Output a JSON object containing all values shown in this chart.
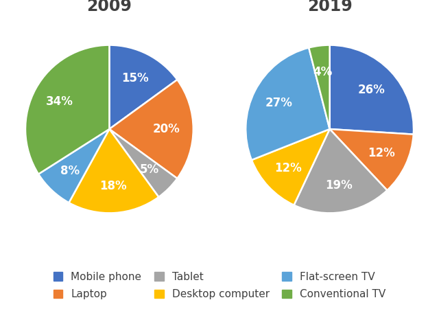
{
  "title_2009": "2009",
  "title_2019": "2019",
  "categories": [
    "Mobile phone",
    "Laptop",
    "Tablet",
    "Desktop computer",
    "Flat-screen TV",
    "Conventional TV"
  ],
  "colors": [
    "#4472C4",
    "#ED7D31",
    "#A5A5A5",
    "#FFC000",
    "#5BA3D9",
    "#70AD47"
  ],
  "values_2009": [
    15,
    20,
    5,
    18,
    8,
    34
  ],
  "values_2019": [
    26,
    12,
    19,
    12,
    27,
    4
  ],
  "labels_2009": [
    "15%",
    "20%",
    "5%",
    "18%",
    "8%",
    "34%"
  ],
  "labels_2019": [
    "26%",
    "12%",
    "19%",
    "12%",
    "27%",
    "4%"
  ],
  "startangle_2009": 90,
  "startangle_2019": 90,
  "title_fontsize": 17,
  "title_color": "#404040",
  "label_fontsize": 12,
  "legend_fontsize": 11,
  "legend_color": "#404040",
  "background_color": "#FFFFFF"
}
